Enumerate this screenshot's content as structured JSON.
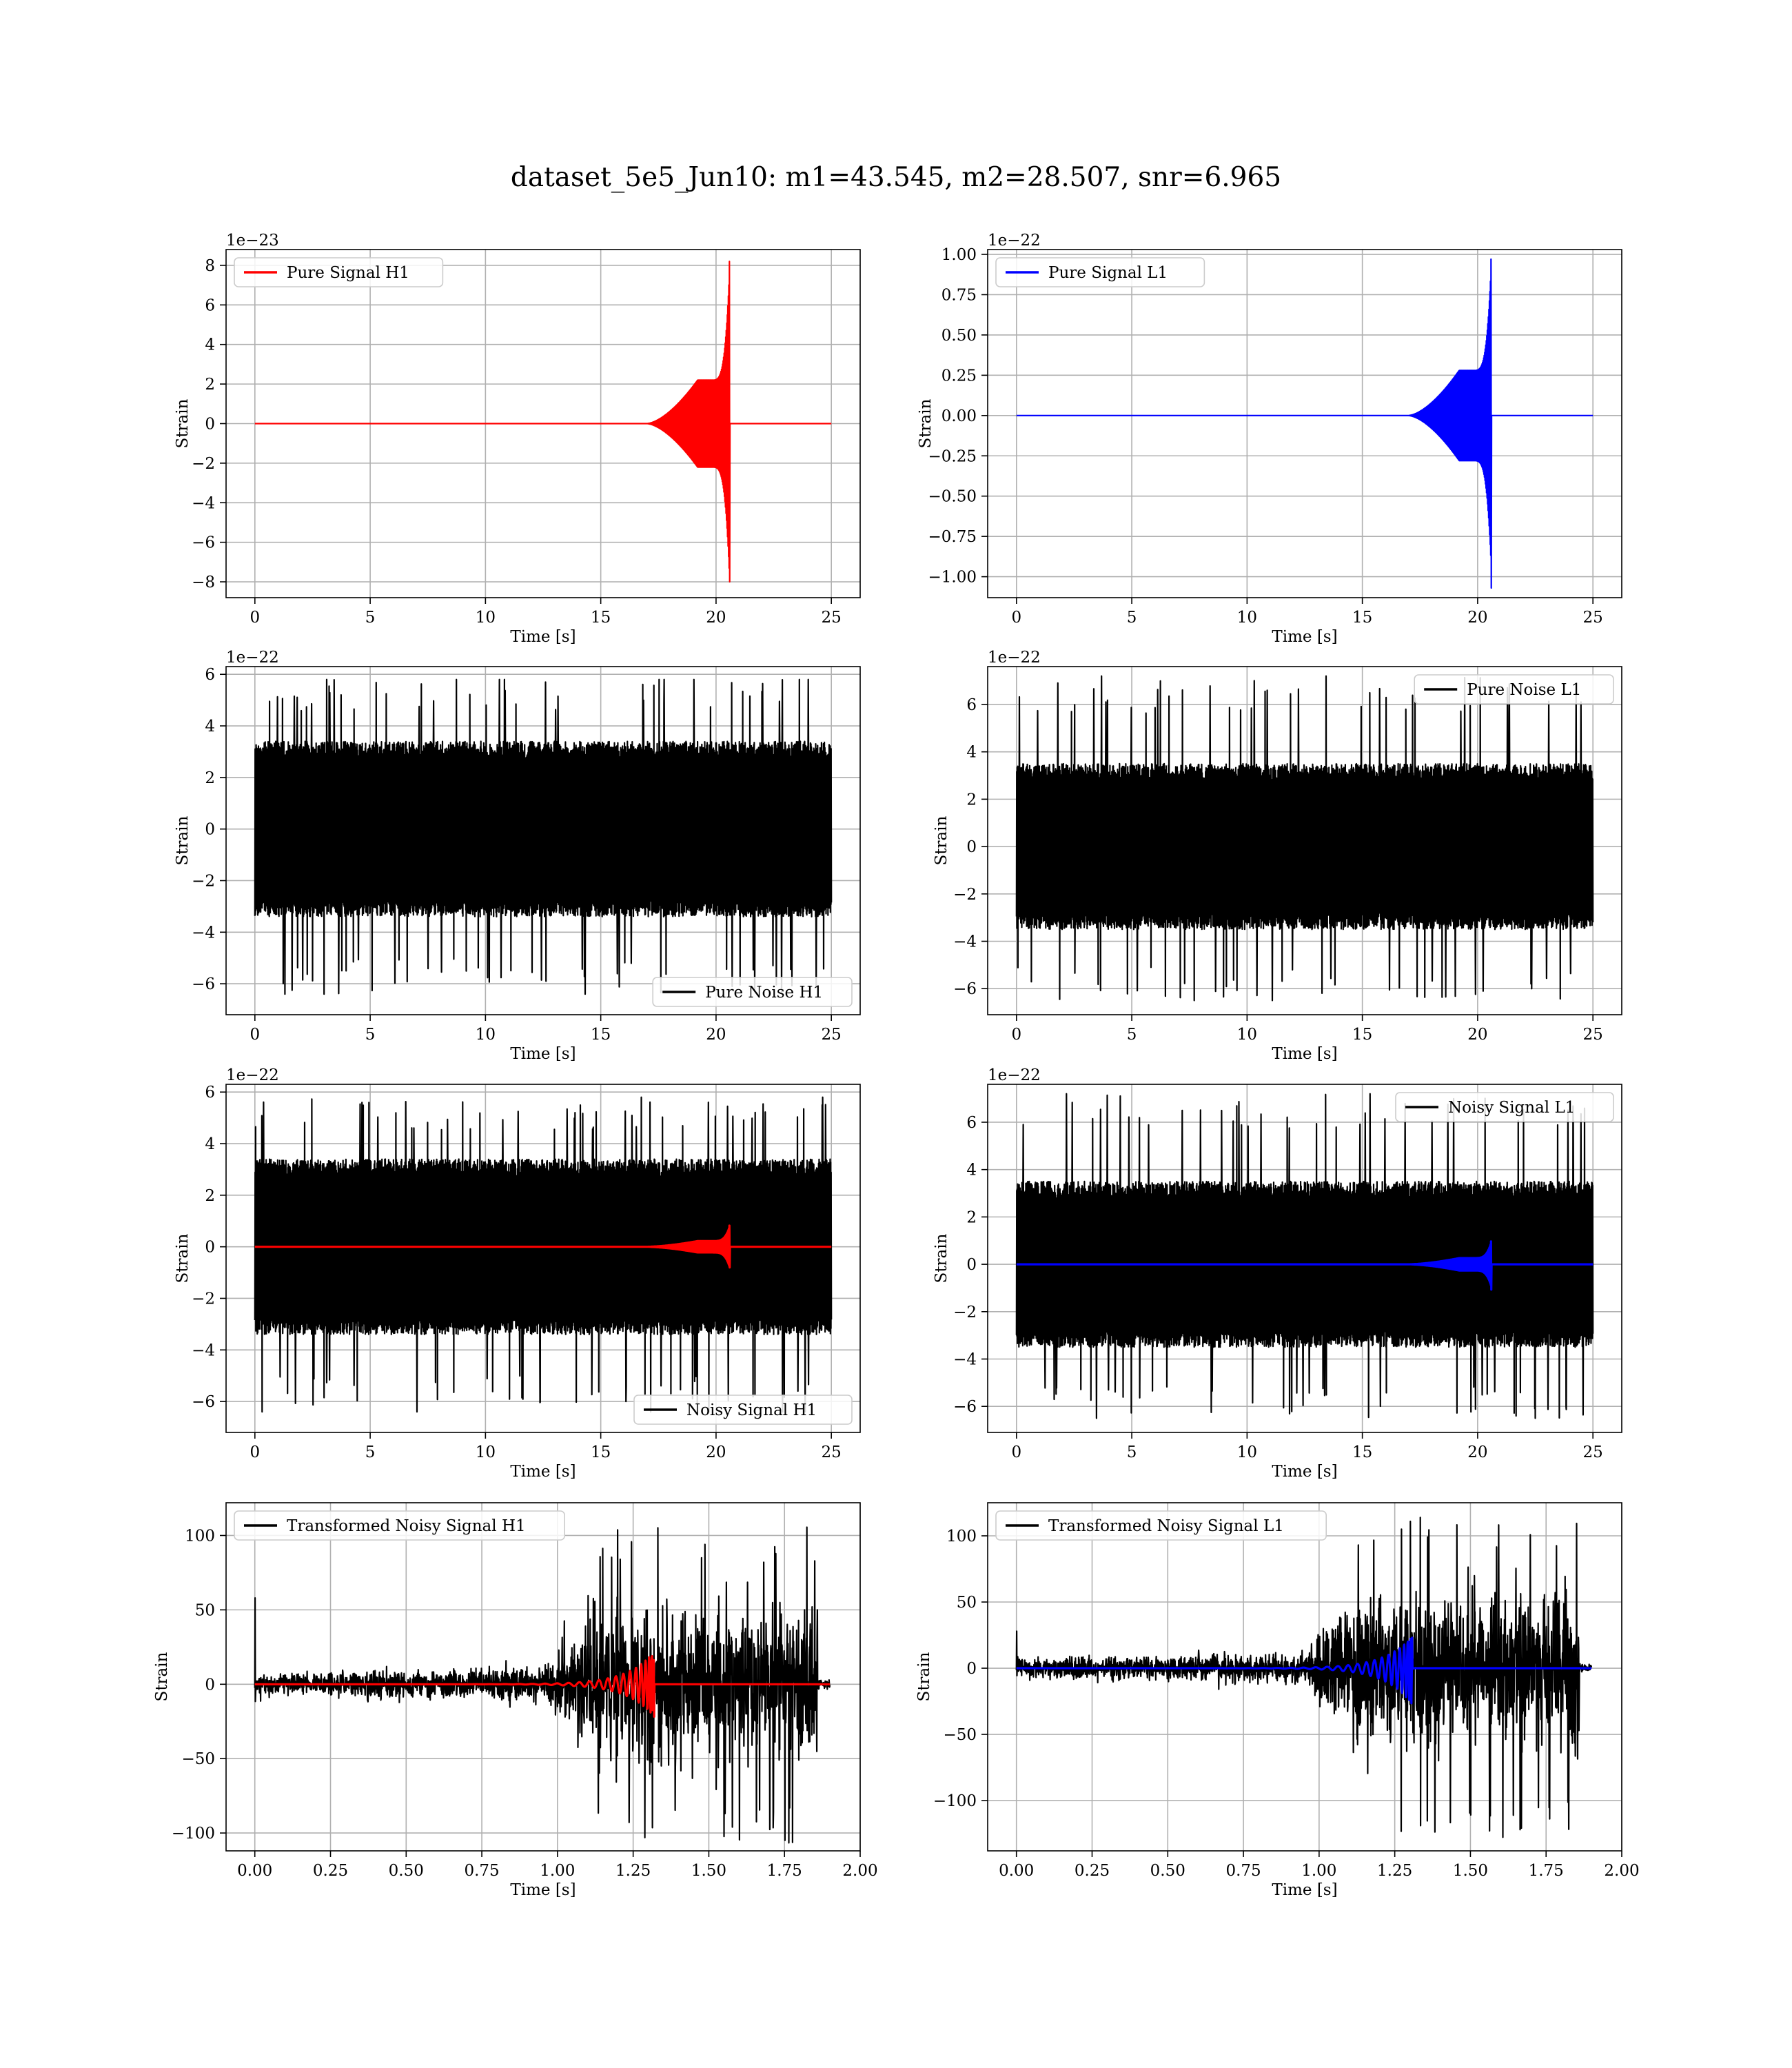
{
  "title": "dataset_5e5_Jun10: m1=43.545, m2=28.507, snr=6.965",
  "colors": {
    "h1_signal": "#ff0000",
    "l1_signal": "#0000ff",
    "noise": "#000000",
    "grid": "#b0b0b0"
  },
  "chart_data": [
    {
      "id": "pure-signal-h1",
      "type": "line",
      "kind": "chirp",
      "ylabel": "Strain",
      "xlabel": "Time [s]",
      "offset_text": "1e−23",
      "xlim": [
        -1.25,
        26.25
      ],
      "ylim": [
        -8.8,
        8.8
      ],
      "xticks": [
        0,
        5,
        10,
        15,
        20,
        25
      ],
      "yticks": [
        -8,
        -6,
        -4,
        -2,
        0,
        2,
        4,
        6,
        8
      ],
      "legend_loc": "upper left",
      "series": [
        {
          "name": "Pure Signal H1",
          "color": "#ff0000",
          "x_range": [
            0,
            25
          ],
          "merger_time": 20.6,
          "peak_positive": 8.2,
          "peak_negative": -8.0,
          "inspiral_amplitude_at_19s": 2.2
        }
      ]
    },
    {
      "id": "pure-signal-l1",
      "type": "line",
      "kind": "chirp",
      "ylabel": "Strain",
      "xlabel": "Time [s]",
      "offset_text": "1e−22",
      "xlim": [
        -1.25,
        26.25
      ],
      "ylim": [
        -1.13,
        1.03
      ],
      "xticks": [
        0,
        5,
        10,
        15,
        20,
        25
      ],
      "yticks": [
        -1.0,
        -0.75,
        -0.5,
        -0.25,
        0.0,
        0.25,
        0.5,
        0.75,
        1.0
      ],
      "legend_loc": "upper left",
      "series": [
        {
          "name": "Pure Signal L1",
          "color": "#0000ff",
          "x_range": [
            0,
            25
          ],
          "merger_time": 20.6,
          "peak_positive": 0.97,
          "peak_negative": -1.07,
          "inspiral_amplitude_at_19s": 0.28
        }
      ]
    },
    {
      "id": "pure-noise-h1",
      "type": "line",
      "kind": "noise",
      "ylabel": "Strain",
      "xlabel": "Time [s]",
      "offset_text": "1e−22",
      "xlim": [
        -1.25,
        26.25
      ],
      "ylim": [
        -7.2,
        6.3
      ],
      "xticks": [
        0,
        5,
        10,
        15,
        20,
        25
      ],
      "yticks": [
        -6,
        -4,
        -2,
        0,
        2,
        4,
        6
      ],
      "legend_loc": "lower right",
      "series": [
        {
          "name": "Pure Noise H1",
          "color": "#000000",
          "x_range": [
            0,
            25
          ],
          "band": 3.4,
          "spike_max": 5.8,
          "spike_min": -6.4
        }
      ]
    },
    {
      "id": "pure-noise-l1",
      "type": "line",
      "kind": "noise",
      "ylabel": "Strain",
      "xlabel": "Time [s]",
      "offset_text": "1e−22",
      "xlim": [
        -1.25,
        26.25
      ],
      "ylim": [
        -7.1,
        7.6
      ],
      "xticks": [
        0,
        5,
        10,
        15,
        20,
        25
      ],
      "yticks": [
        -6,
        -4,
        -2,
        0,
        2,
        4,
        6
      ],
      "legend_loc": "upper right",
      "series": [
        {
          "name": "Pure Noise L1",
          "color": "#000000",
          "x_range": [
            0,
            25
          ],
          "band": 3.5,
          "spike_max": 7.2,
          "spike_min": -6.5
        }
      ]
    },
    {
      "id": "noisy-signal-h1",
      "type": "line",
      "kind": "noisy",
      "ylabel": "Strain",
      "xlabel": "Time [s]",
      "offset_text": "1e−22",
      "xlim": [
        -1.25,
        26.25
      ],
      "ylim": [
        -7.2,
        6.3
      ],
      "xticks": [
        0,
        5,
        10,
        15,
        20,
        25
      ],
      "yticks": [
        -6,
        -4,
        -2,
        0,
        2,
        4,
        6
      ],
      "legend_loc": "lower right",
      "series": [
        {
          "name": "Noisy Signal H1",
          "color": "#000000",
          "x_range": [
            0,
            25
          ],
          "band": 3.4,
          "spike_max": 5.8,
          "spike_min": -6.4
        },
        {
          "name": "",
          "color": "#ff0000",
          "x_range": [
            0,
            25
          ],
          "merger_time": 20.6,
          "peak_positive": 0.82,
          "peak_negative": -0.8
        }
      ]
    },
    {
      "id": "noisy-signal-l1",
      "type": "line",
      "kind": "noisy",
      "ylabel": "Strain",
      "xlabel": "Time [s]",
      "offset_text": "1e−22",
      "xlim": [
        -1.25,
        26.25
      ],
      "ylim": [
        -7.1,
        7.6
      ],
      "xticks": [
        0,
        5,
        10,
        15,
        20,
        25
      ],
      "yticks": [
        -6,
        -4,
        -2,
        0,
        2,
        4,
        6
      ],
      "legend_loc": "upper right",
      "series": [
        {
          "name": "Noisy Signal L1",
          "color": "#000000",
          "x_range": [
            0,
            25
          ],
          "band": 3.5,
          "spike_max": 7.2,
          "spike_min": -6.5
        },
        {
          "name": "",
          "color": "#0000ff",
          "x_range": [
            0,
            25
          ],
          "merger_time": 20.6,
          "peak_positive": 0.97,
          "peak_negative": -1.07
        }
      ]
    },
    {
      "id": "transformed-h1",
      "type": "line",
      "kind": "transformed",
      "ylabel": "Strain",
      "xlabel": "Time [s]",
      "offset_text": "",
      "xlim": [
        -0.095,
        2.0
      ],
      "ylim": [
        -112,
        122
      ],
      "xticks": [
        0.0,
        0.25,
        0.5,
        0.75,
        1.0,
        1.25,
        1.5,
        1.75,
        2.0
      ],
      "xtick_labels": [
        "0.00",
        "0.25",
        "0.50",
        "0.75",
        "1.00",
        "1.25",
        "1.50",
        "1.75",
        "2.00"
      ],
      "yticks": [
        -100,
        -50,
        0,
        50,
        100
      ],
      "legend_loc": "upper left",
      "series": [
        {
          "name": "Transformed Noisy Signal H1",
          "color": "#000000",
          "x_range": [
            0,
            1.9
          ],
          "initial_spike": 58,
          "early_band": 6,
          "late_band": 42,
          "spike_max": 108,
          "spike_min": -107
        },
        {
          "name": "",
          "color": "#ff0000",
          "x_range": [
            0,
            1.9
          ],
          "merger_time": 1.32,
          "peak_positive": 22,
          "peak_negative": -22
        }
      ]
    },
    {
      "id": "transformed-l1",
      "type": "line",
      "kind": "transformed",
      "ylabel": "Strain",
      "xlabel": "Time [s]",
      "offset_text": "",
      "xlim": [
        -0.095,
        2.0
      ],
      "ylim": [
        -138,
        125
      ],
      "xticks": [
        0.0,
        0.25,
        0.5,
        0.75,
        1.0,
        1.25,
        1.5,
        1.75,
        2.0
      ],
      "xtick_labels": [
        "0.00",
        "0.25",
        "0.50",
        "0.75",
        "1.00",
        "1.25",
        "1.50",
        "1.75",
        "2.00"
      ],
      "yticks": [
        -100,
        -50,
        0,
        50,
        100
      ],
      "legend_loc": "upper left",
      "series": [
        {
          "name": "Transformed Noisy Signal L1",
          "color": "#000000",
          "x_range": [
            0,
            1.9
          ],
          "initial_spike": 28,
          "early_band": 6,
          "late_band": 48,
          "spike_max": 115,
          "spike_min": -128
        },
        {
          "name": "",
          "color": "#0000ff",
          "x_range": [
            0,
            1.9
          ],
          "merger_time": 1.31,
          "peak_positive": 25,
          "peak_negative": -28
        }
      ]
    }
  ]
}
